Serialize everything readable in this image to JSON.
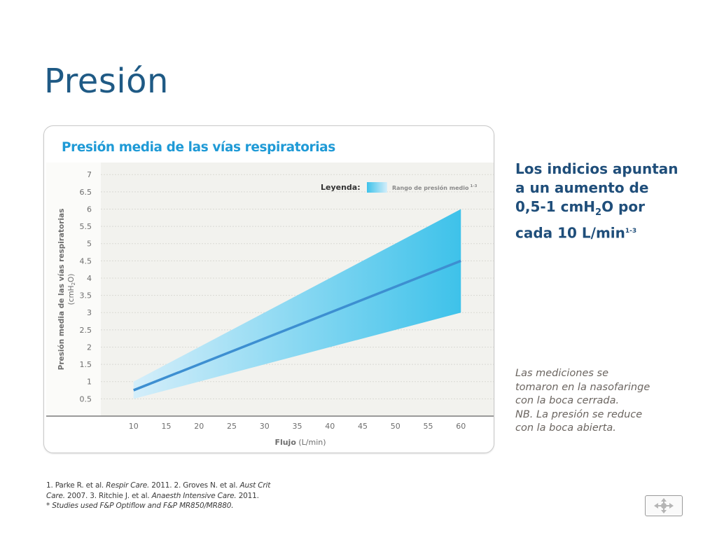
{
  "slide": {
    "title": "Presión"
  },
  "chart_data": {
    "type": "area",
    "title": "Presión media de las vías respiratorias",
    "xlabel_bold": "Flujo",
    "xlabel_unit": " (L/min)",
    "ylabel_line1": "Presión media de las vías respiratorias",
    "ylabel_line2_pre": "(cmH",
    "ylabel_line2_sub": "2",
    "ylabel_line2_post": "O)",
    "x": [
      10,
      60
    ],
    "mean": [
      0.75,
      4.5
    ],
    "range_low": [
      0.5,
      3.0
    ],
    "range_high": [
      1.0,
      6.0
    ],
    "xlim": [
      5,
      65
    ],
    "ylim": [
      0,
      7.35
    ],
    "x_ticks": [
      10,
      15,
      20,
      25,
      30,
      35,
      40,
      45,
      50,
      55,
      60
    ],
    "y_ticks": [
      0.5,
      1,
      1.5,
      2,
      2.5,
      3,
      3.5,
      4,
      4.5,
      5,
      5.5,
      6,
      6.5,
      7
    ],
    "y_tick_labels": [
      "0.5",
      "1",
      "1.5",
      "2",
      "2.5",
      "3",
      "3.5",
      "4",
      "4.5",
      "5",
      "5.5",
      "6",
      "6.5",
      "7"
    ],
    "grid": true,
    "legend": {
      "prefix": "Leyenda:",
      "label": "Rango de presión medio",
      "label_sup": "1-3",
      "placement": "top-right"
    },
    "colors": {
      "title": "#1f9ad6",
      "band_light": "#d4eefa",
      "band_dark": "#3ec2ea",
      "mean_line": "#3d8fd1",
      "plot_bg": "#f2f2ee",
      "grid": "#d9d9d4",
      "axis": "#7a7a7a"
    }
  },
  "side_text": {
    "headline_line1": "Los indicios apuntan",
    "headline_line2": "a un aumento de",
    "headline_line3_pre": "0,5-1 cmH",
    "headline_line3_sub": "2",
    "headline_line3_post": "O por",
    "headline_line4": "cada 10 L/min",
    "headline_line4_sup": "1-3",
    "note_lines": [
      "Las mediciones se",
      "tomaron en la nasofaringe",
      "con la boca cerrada.",
      "NB. La presión se reduce",
      "con la boca abierta."
    ]
  },
  "references": {
    "r1": "1. Parke R. et al. ",
    "r1_journal": "Respir Care.",
    "r1_b": " 2011. 2. Groves N. et al. ",
    "r1_journal2": "Aust Crit",
    "r2_journal2": "Care.",
    "r2": " 2007. 3. Ritchie J. et al. ",
    "r2_journal3": "Anaesth Intensive Care.",
    "r2_b": " 2011.",
    "note": "* Studies used F&P Optiflow and F&P MR850/MR880."
  },
  "nav": {
    "icon": "move-arrows-icon"
  }
}
